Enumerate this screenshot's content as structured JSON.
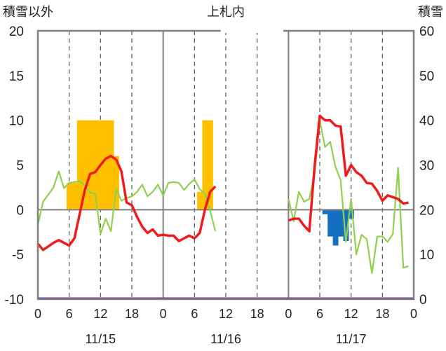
{
  "chart_data": {
    "type": "bar+line",
    "title": "上札内",
    "left_axis_label": "積雪以外",
    "right_axis_label": "積雪",
    "left_ylim": [
      -10,
      20
    ],
    "right_ylim": [
      0,
      60
    ],
    "left_ticks": [
      "20",
      "15",
      "10",
      "5",
      "0",
      "-5",
      "-10"
    ],
    "right_ticks": [
      "60",
      "50",
      "40",
      "30",
      "20",
      "10",
      "0"
    ],
    "x_tick_labels": [
      "0",
      "6",
      "12",
      "18",
      "0",
      "6",
      "12",
      "18",
      "0",
      "6",
      "12",
      "18",
      "0"
    ],
    "date_labels": [
      "11/15",
      "11/16",
      "11/17"
    ],
    "colors": {
      "temperature": "#ee1c1c",
      "wind": "#8fd14f",
      "precip_positive": "#ffc000",
      "snow_negative": "#1570c1",
      "baseline": "#7030a0",
      "frame": "#7f7f7f"
    },
    "series": [
      {
        "kind": "line",
        "color_key": "temperature",
        "points": [
          [
            0,
            -3.8
          ],
          [
            1,
            -4.5
          ],
          [
            3,
            -3.7
          ],
          [
            4,
            -3.4
          ],
          [
            5,
            -3.7
          ],
          [
            6,
            -4.0
          ],
          [
            7,
            -3.2
          ],
          [
            8,
            -0.5
          ],
          [
            9,
            2.2
          ],
          [
            10,
            4.0
          ],
          [
            11,
            4.2
          ],
          [
            12,
            5.0
          ],
          [
            13,
            5.7
          ],
          [
            14,
            6.0
          ],
          [
            15,
            5.6
          ],
          [
            16,
            4.3
          ],
          [
            17,
            0.8
          ],
          [
            18,
            0.5
          ],
          [
            19,
            -0.8
          ],
          [
            20,
            -1.9
          ],
          [
            21,
            -2.6
          ],
          [
            22,
            -2.2
          ],
          [
            23,
            -2.9
          ],
          [
            24,
            -2.8
          ],
          [
            25,
            -2.9
          ],
          [
            26,
            -2.9
          ],
          [
            27,
            -3.5
          ],
          [
            28,
            -3.2
          ],
          [
            29,
            -2.9
          ],
          [
            30,
            -3.2
          ],
          [
            31,
            -2.6
          ],
          [
            32,
            0.0
          ],
          [
            33,
            2.0
          ],
          [
            34,
            2.6
          ]
        ]
      },
      {
        "kind": "line",
        "color_key": "temperature",
        "points": [
          [
            48,
            -1.2
          ],
          [
            49,
            -1.0
          ],
          [
            50,
            -1.0
          ],
          [
            51,
            -1.8
          ],
          [
            52,
            -2.4
          ],
          [
            53,
            4.8
          ],
          [
            54,
            10.5
          ],
          [
            55,
            10.0
          ],
          [
            56,
            10.0
          ],
          [
            57,
            9.4
          ],
          [
            58,
            9.3
          ],
          [
            59,
            3.8
          ],
          [
            60,
            5.0
          ],
          [
            61,
            4.2
          ],
          [
            62,
            3.8
          ],
          [
            63,
            3.0
          ],
          [
            64,
            2.9
          ],
          [
            65,
            2.1
          ],
          [
            66,
            1.0
          ],
          [
            67,
            1.6
          ],
          [
            68,
            1.4
          ],
          [
            69,
            1.2
          ],
          [
            70,
            0.7
          ],
          [
            71,
            0.8
          ]
        ]
      },
      {
        "kind": "line",
        "color_key": "wind",
        "points": [
          [
            0,
            -1.7
          ],
          [
            1,
            0.9
          ],
          [
            3,
            2.5
          ],
          [
            4,
            4.3
          ],
          [
            5,
            2.4
          ],
          [
            6,
            3.0
          ],
          [
            7,
            3.1
          ],
          [
            8,
            3.2
          ],
          [
            9,
            2.7
          ],
          [
            10,
            1.9
          ],
          [
            11,
            1.8
          ],
          [
            12,
            -2.7
          ],
          [
            13,
            -1.0
          ],
          [
            14,
            -2.4
          ],
          [
            15,
            2.3
          ],
          [
            16,
            1.0
          ],
          [
            17,
            1.3
          ],
          [
            18,
            1.5
          ],
          [
            19,
            2.0
          ],
          [
            20,
            2.8
          ],
          [
            21,
            1.5
          ],
          [
            22,
            2.0
          ],
          [
            23,
            2.8
          ],
          [
            24,
            1.6
          ],
          [
            25,
            3.0
          ],
          [
            26,
            3.1
          ],
          [
            27,
            3.0
          ],
          [
            28,
            2.2
          ],
          [
            29,
            2.9
          ],
          [
            30,
            3.4
          ],
          [
            31,
            2.3
          ],
          [
            32,
            1.8
          ],
          [
            33,
            -0.1
          ],
          [
            34,
            -2.4
          ]
        ]
      },
      {
        "kind": "line",
        "color_key": "wind",
        "points": [
          [
            48,
            1.2
          ],
          [
            49,
            -1.3
          ],
          [
            50,
            2.0
          ],
          [
            51,
            0.9
          ],
          [
            52,
            1.2
          ],
          [
            53,
            4.0
          ],
          [
            54,
            10.0
          ],
          [
            55,
            7.0
          ],
          [
            56,
            7.6
          ],
          [
            57,
            4.8
          ],
          [
            58,
            3.3
          ],
          [
            59,
            -3.6
          ],
          [
            60,
            1.2
          ],
          [
            61,
            -5.0
          ],
          [
            62,
            -2.8
          ],
          [
            63,
            -3.3
          ],
          [
            64,
            -7.1
          ],
          [
            65,
            -3.0
          ],
          [
            66,
            -3.0
          ],
          [
            67,
            -3.6
          ],
          [
            68,
            -2.7
          ],
          [
            69,
            4.7
          ],
          [
            70,
            -6.5
          ],
          [
            71,
            -6.3
          ]
        ]
      },
      {
        "kind": "bar",
        "color_key": "precip_positive",
        "axis": "left",
        "bars": [
          [
            6,
            3
          ],
          [
            7,
            3
          ],
          [
            8,
            10
          ],
          [
            9,
            10
          ],
          [
            10,
            10
          ],
          [
            11,
            10
          ],
          [
            12,
            10
          ],
          [
            13,
            10
          ],
          [
            14,
            10
          ],
          [
            15,
            6
          ],
          [
            31,
            2
          ],
          [
            32,
            10
          ],
          [
            33,
            10
          ]
        ]
      },
      {
        "kind": "bar",
        "color_key": "snow_negative",
        "axis": "left",
        "bars": [
          [
            55,
            -0.5
          ],
          [
            56,
            -3.0
          ],
          [
            57,
            -4.0
          ],
          [
            58,
            -3.0
          ],
          [
            59,
            -3.5
          ],
          [
            60,
            -1.0
          ]
        ]
      }
    ],
    "missing_ranges": [
      [
        35,
        47
      ]
    ],
    "x_range_hours": [
      0,
      72
    ],
    "grid": "dashed verticals at 6/12/18 h, solid verticals at day boundaries"
  }
}
